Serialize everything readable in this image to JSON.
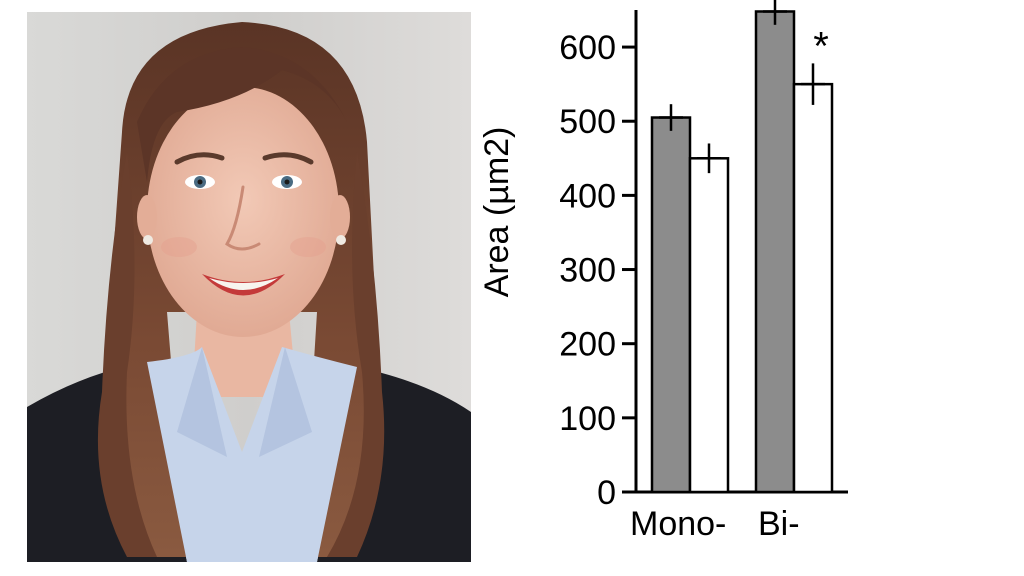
{
  "chart_data": {
    "type": "bar",
    "categories": [
      "Mono-",
      "Bi-"
    ],
    "series": [
      {
        "name": "gray",
        "color": "#8c8c8c",
        "values": [
          505,
          648
        ],
        "errors": [
          18,
          18
        ]
      },
      {
        "name": "white",
        "color": "#ffffff",
        "values": [
          450,
          550
        ],
        "errors": [
          20,
          28
        ]
      }
    ],
    "ylabel": "Area (µm2)",
    "xlabel": "",
    "ylim": [
      0,
      650
    ],
    "yticks": [
      "0",
      "100",
      "200",
      "300",
      "400",
      "500",
      "600"
    ],
    "annotations": [
      {
        "text": "*",
        "category": "Bi-",
        "series": "white"
      }
    ]
  }
}
